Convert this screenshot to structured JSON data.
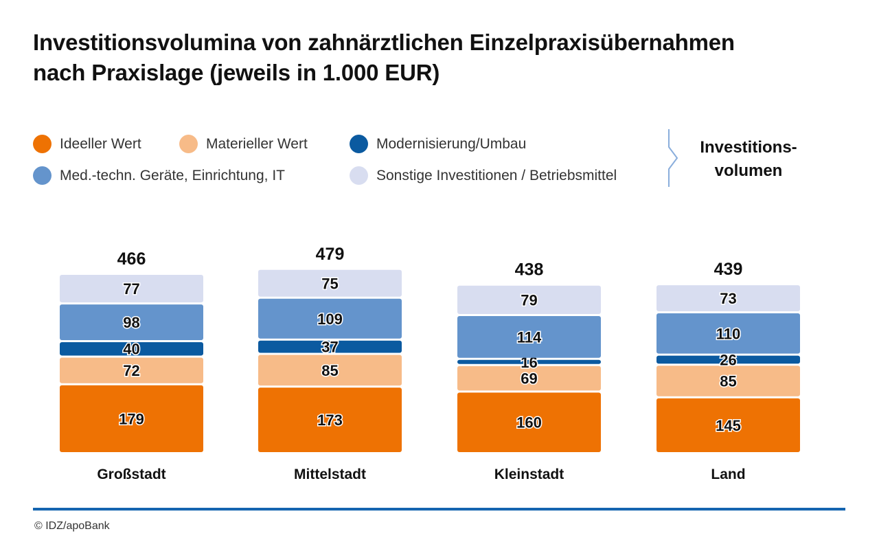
{
  "title": {
    "line1": "Investitionsvolumina von zahnärztlichen Einzelpraxisübernahmen",
    "line2": "nach Praxislage (jeweils in 1.000 EUR)"
  },
  "colors": {
    "ideeller": "#ee7203",
    "materieller": "#f7bb88",
    "modernisierung": "#0b5aa0",
    "geraete": "#6494cc",
    "sonstige": "#d8ddf0",
    "accent_line": "#1565b0"
  },
  "legend": {
    "items": [
      {
        "label": "Ideeller Wert",
        "color": "#ee7203"
      },
      {
        "label": "Materieller Wert",
        "color": "#f7bb88"
      },
      {
        "label": "Modernisierung/Umbau",
        "color": "#0b5aa0"
      },
      {
        "label": "Med.-techn. Geräte, Einrichtung, IT",
        "color": "#6494cc"
      },
      {
        "label": "Sonstige Investitionen / Betriebsmittel",
        "color": "#d8ddf0"
      }
    ],
    "total_line1": "Investitions-",
    "total_line2": "volumen"
  },
  "chart_data": {
    "type": "bar",
    "stacked": true,
    "title": "Investitionsvolumina von zahnärztlichen Einzelpraxisübernahmen nach Praxislage (jeweils in 1.000 EUR)",
    "categories": [
      "Großstadt",
      "Mittelstadt",
      "Kleinstadt",
      "Land"
    ],
    "series": [
      {
        "name": "Ideeller Wert",
        "color": "#ee7203",
        "values": [
          179,
          173,
          160,
          145
        ]
      },
      {
        "name": "Materieller Wert",
        "color": "#f7bb88",
        "values": [
          72,
          85,
          69,
          85
        ]
      },
      {
        "name": "Modernisierung/Umbau",
        "color": "#0b5aa0",
        "values": [
          40,
          37,
          16,
          26
        ]
      },
      {
        "name": "Med.-techn. Geräte, Einrichtung, IT",
        "color": "#6494cc",
        "values": [
          98,
          109,
          114,
          110
        ]
      },
      {
        "name": "Sonstige Investitionen / Betriebsmittel",
        "color": "#d8ddf0",
        "values": [
          77,
          75,
          79,
          73
        ]
      }
    ],
    "totals": [
      466,
      479,
      438,
      439
    ],
    "total_label": "Investitionsvolumen",
    "xlabel": "",
    "ylabel": "",
    "grid": false
  },
  "source": "© IDZ/apoBank"
}
